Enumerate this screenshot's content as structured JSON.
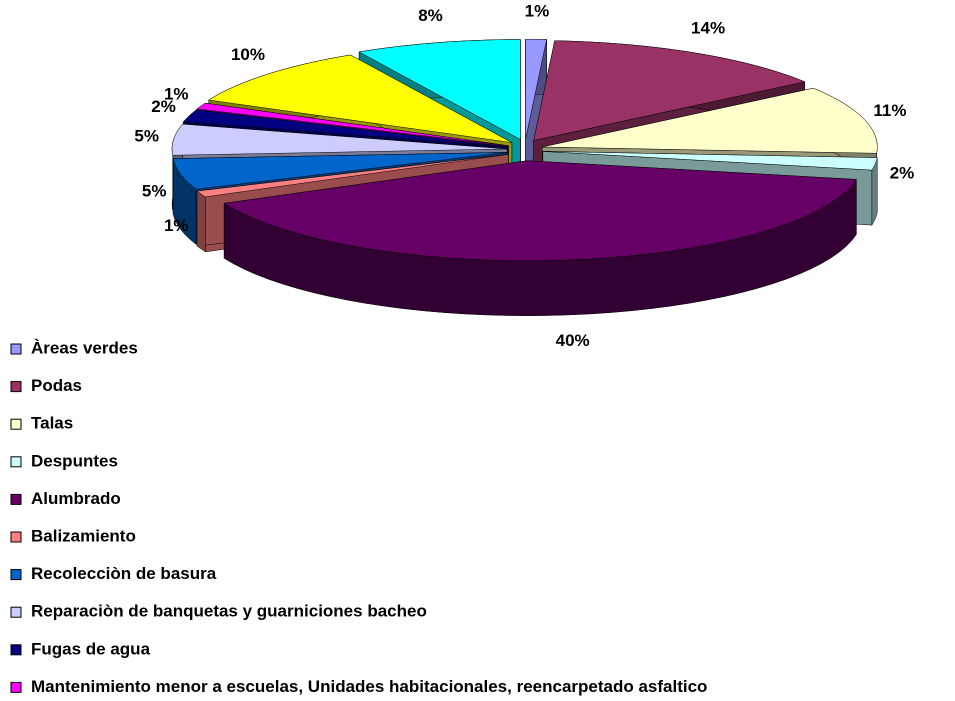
{
  "chart_data": {
    "type": "pie",
    "categories": [
      "Àreas verdes",
      "Podas",
      "Talas",
      "Despuntes",
      "Alumbrado",
      "Balizamiento",
      "Recolecciòn de basura",
      "Reparaciòn de banquetas y guarniciones bacheo",
      "Fugas de agua",
      "Mantenimiento menor a escuelas, Unidades habitacionales, reencarpetado asfaltico",
      null,
      null
    ],
    "values": [
      1,
      14,
      11,
      2,
      40,
      1,
      5,
      5,
      2,
      1,
      10,
      8
    ],
    "value_labels": [
      "1%",
      "14%",
      "11%",
      "2%",
      "40%",
      "1%",
      "5%",
      "5%",
      "2%",
      "1%",
      "10%",
      "8%"
    ],
    "colors": [
      "#9999ff",
      "#993366",
      "#ffffcc",
      "#ccffff",
      "#660066",
      "#ff8080",
      "#0066cc",
      "#ccccff",
      "#000080",
      "#ff00ff",
      "#ffff00",
      "#00ffff"
    ]
  }
}
